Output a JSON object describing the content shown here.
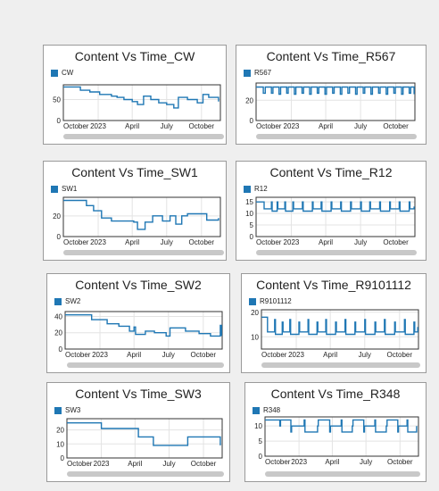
{
  "chart_data": [
    {
      "type": "line",
      "title": "Content Vs Time_CW",
      "series": [
        {
          "name": "CW",
          "color": "#1f77b4",
          "x": [
            "2022-10-01",
            "2022-10-16",
            "2022-11-15",
            "2022-12-10",
            "2023-01-05",
            "2023-02-05",
            "2023-02-20",
            "2023-03-10",
            "2023-04-01",
            "2023-04-15",
            "2023-05-01",
            "2023-05-20",
            "2023-06-10",
            "2023-07-01",
            "2023-07-20",
            "2023-08-01",
            "2023-08-25",
            "2023-09-20",
            "2023-10-05",
            "2023-10-20",
            "2023-11-15"
          ],
          "y": [
            80,
            80,
            72,
            68,
            62,
            58,
            55,
            50,
            45,
            38,
            58,
            50,
            42,
            38,
            30,
            55,
            50,
            42,
            62,
            55,
            45
          ]
        }
      ],
      "yticks": [
        0,
        50
      ],
      "ylim": [
        0,
        85
      ],
      "xlim": [
        "2022-10-01",
        "2023-11-20"
      ],
      "xticks": [
        {
          "label": "October",
          "date": "2022-10-01"
        },
        {
          "label": "2023",
          "date": "2023-01-01"
        },
        {
          "label": "April",
          "date": "2023-04-01"
        },
        {
          "label": "July",
          "date": "2023-07-01"
        },
        {
          "label": "October",
          "date": "2023-10-01"
        }
      ],
      "grid": true
    },
    {
      "type": "line",
      "title": "Content Vs Time_R567",
      "series": [
        {
          "name": "R567",
          "color": "#1f77b4",
          "x": [
            "2022-10-01",
            "2022-10-05",
            "2022-10-20",
            "2022-10-25",
            "2022-11-10",
            "2022-11-14",
            "2022-11-30",
            "2022-12-04",
            "2022-12-20",
            "2022-12-24",
            "2023-01-09",
            "2023-01-13",
            "2023-01-29",
            "2023-02-02",
            "2023-02-18",
            "2023-02-22",
            "2023-03-10",
            "2023-03-14",
            "2023-03-30",
            "2023-04-03",
            "2023-04-19",
            "2023-04-23",
            "2023-05-09",
            "2023-05-13",
            "2023-05-29",
            "2023-06-02",
            "2023-06-18",
            "2023-06-22",
            "2023-07-08",
            "2023-07-12",
            "2023-07-28",
            "2023-08-01",
            "2023-08-17",
            "2023-08-21",
            "2023-09-06",
            "2023-09-10",
            "2023-09-26",
            "2023-09-30",
            "2023-10-16",
            "2023-10-20",
            "2023-11-05",
            "2023-11-09",
            "2023-11-18"
          ],
          "y": [
            33,
            33,
            27,
            33,
            27,
            33,
            26,
            33,
            27,
            33,
            26,
            33,
            27,
            33,
            26,
            33,
            27,
            33,
            26,
            33,
            27,
            33,
            26,
            33,
            27,
            33,
            26,
            33,
            27,
            33,
            26,
            33,
            27,
            33,
            26,
            33,
            27,
            33,
            26,
            33,
            27,
            33,
            26
          ]
        }
      ],
      "yticks": [
        0,
        20
      ],
      "ylim": [
        0,
        37
      ],
      "xlim": [
        "2022-10-01",
        "2023-11-20"
      ],
      "xticks": [
        {
          "label": "October",
          "date": "2022-10-01"
        },
        {
          "label": "2023",
          "date": "2023-01-01"
        },
        {
          "label": "April",
          "date": "2023-04-01"
        },
        {
          "label": "July",
          "date": "2023-07-01"
        },
        {
          "label": "October",
          "date": "2023-10-01"
        }
      ],
      "grid": true
    },
    {
      "type": "line",
      "title": "Content Vs Time_SW1",
      "series": [
        {
          "name": "SW1",
          "color": "#1f77b4",
          "x": [
            "2022-10-01",
            "2022-11-01",
            "2022-12-01",
            "2022-12-20",
            "2023-01-10",
            "2023-02-05",
            "2023-03-10",
            "2023-04-05",
            "2023-04-15",
            "2023-05-05",
            "2023-05-25",
            "2023-06-20",
            "2023-07-10",
            "2023-07-25",
            "2023-08-10",
            "2023-08-25",
            "2023-09-30",
            "2023-10-15",
            "2023-11-15"
          ],
          "y": [
            35,
            35,
            30,
            25,
            18,
            15,
            15,
            14,
            7,
            14,
            20,
            15,
            20,
            12,
            20,
            22,
            22,
            16,
            18
          ]
        }
      ],
      "yticks": [
        0,
        20
      ],
      "ylim": [
        0,
        38
      ],
      "xlim": [
        "2022-10-01",
        "2023-11-20"
      ],
      "xticks": [
        {
          "label": "October",
          "date": "2022-10-01"
        },
        {
          "label": "2023",
          "date": "2023-01-01"
        },
        {
          "label": "April",
          "date": "2023-04-01"
        },
        {
          "label": "July",
          "date": "2023-07-01"
        },
        {
          "label": "October",
          "date": "2023-10-01"
        }
      ],
      "grid": true
    },
    {
      "type": "line",
      "title": "Content Vs Time_R12",
      "series": [
        {
          "name": "R12",
          "color": "#1f77b4",
          "x": [
            "2022-10-01",
            "2022-10-20",
            "2022-10-22",
            "2022-11-10",
            "2022-11-12",
            "2022-11-25",
            "2022-11-27",
            "2022-12-15",
            "2022-12-17",
            "2023-01-05",
            "2023-01-07",
            "2023-01-30",
            "2023-02-01",
            "2023-02-25",
            "2023-02-27",
            "2023-03-20",
            "2023-03-22",
            "2023-04-15",
            "2023-04-17",
            "2023-05-10",
            "2023-05-12",
            "2023-06-05",
            "2023-06-07",
            "2023-07-01",
            "2023-07-03",
            "2023-07-25",
            "2023-07-27",
            "2023-08-20",
            "2023-08-22",
            "2023-09-15",
            "2023-09-17",
            "2023-10-10",
            "2023-10-12",
            "2023-11-05",
            "2023-11-07",
            "2023-11-18"
          ],
          "y": [
            15,
            15,
            12,
            15,
            11,
            15,
            12,
            15,
            11,
            15,
            12,
            15,
            11,
            15,
            12,
            15,
            11,
            15,
            12,
            15,
            11,
            15,
            12,
            15,
            11,
            15,
            12,
            15,
            11,
            15,
            12,
            15,
            11,
            15,
            12,
            13
          ]
        }
      ],
      "yticks": [
        0,
        5,
        10,
        15
      ],
      "ylim": [
        0,
        17
      ],
      "xlim": [
        "2022-10-01",
        "2023-11-20"
      ],
      "xticks": [
        {
          "label": "October",
          "date": "2022-10-01"
        },
        {
          "label": "2023",
          "date": "2023-01-01"
        },
        {
          "label": "April",
          "date": "2023-04-01"
        },
        {
          "label": "July",
          "date": "2023-07-01"
        },
        {
          "label": "October",
          "date": "2023-10-01"
        }
      ],
      "grid": true
    },
    {
      "type": "line",
      "title": "Content Vs Time_SW2",
      "series": [
        {
          "name": "SW2",
          "color": "#1f77b4",
          "x": [
            "2022-10-01",
            "2022-11-01",
            "2022-12-10",
            "2023-01-20",
            "2023-02-20",
            "2023-03-20",
            "2023-04-01",
            "2023-04-05",
            "2023-05-01",
            "2023-05-25",
            "2023-06-25",
            "2023-07-05",
            "2023-08-15",
            "2023-09-20",
            "2023-10-20",
            "2023-11-15",
            "2023-11-18"
          ],
          "y": [
            42,
            42,
            36,
            31,
            28,
            22,
            27,
            18,
            22,
            20,
            16,
            26,
            22,
            19,
            16,
            29,
            16
          ]
        }
      ],
      "yticks": [
        0,
        20,
        40
      ],
      "ylim": [
        0,
        46
      ],
      "xlim": [
        "2022-10-01",
        "2023-11-20"
      ],
      "xticks": [
        {
          "label": "October",
          "date": "2022-10-01"
        },
        {
          "label": "2023",
          "date": "2023-01-01"
        },
        {
          "label": "April",
          "date": "2023-04-01"
        },
        {
          "label": "July",
          "date": "2023-07-01"
        },
        {
          "label": "October",
          "date": "2023-10-01"
        }
      ],
      "grid": true
    },
    {
      "type": "line",
      "title": "Content Vs Time_R9101112",
      "series": [
        {
          "name": "R9101112",
          "color": "#1f77b4",
          "x": [
            "2022-10-01",
            "2022-10-15",
            "2022-10-17",
            "2022-11-05",
            "2022-11-07",
            "2022-11-25",
            "2022-11-27",
            "2022-12-15",
            "2022-12-17",
            "2023-01-08",
            "2023-01-10",
            "2023-02-01",
            "2023-02-03",
            "2023-02-25",
            "2023-02-27",
            "2023-03-20",
            "2023-03-22",
            "2023-04-15",
            "2023-04-17",
            "2023-05-10",
            "2023-05-12",
            "2023-06-05",
            "2023-06-07",
            "2023-07-01",
            "2023-07-03",
            "2023-07-28",
            "2023-07-30",
            "2023-08-22",
            "2023-08-24",
            "2023-09-18",
            "2023-09-20",
            "2023-10-14",
            "2023-10-16",
            "2023-11-08",
            "2023-11-10",
            "2023-11-18"
          ],
          "y": [
            18,
            18,
            12,
            17,
            11,
            16,
            12,
            17,
            11,
            16,
            12,
            17,
            11,
            16,
            12,
            17,
            11,
            16,
            12,
            17,
            11,
            16,
            12,
            17,
            11,
            16,
            12,
            17,
            11,
            16,
            12,
            17,
            11,
            16,
            12,
            14
          ]
        }
      ],
      "yticks": [
        10,
        20
      ],
      "ylim": [
        5,
        21
      ],
      "xlim": [
        "2022-10-01",
        "2023-11-20"
      ],
      "xticks": [
        {
          "label": "October",
          "date": "2022-10-01"
        },
        {
          "label": "2023",
          "date": "2023-01-01"
        },
        {
          "label": "April",
          "date": "2023-04-01"
        },
        {
          "label": "July",
          "date": "2023-07-01"
        },
        {
          "label": "October",
          "date": "2023-10-01"
        }
      ],
      "grid": true
    },
    {
      "type": "line",
      "title": "Content Vs Time_SW3",
      "series": [
        {
          "name": "SW3",
          "color": "#1f77b4",
          "x": [
            "2022-10-01",
            "2022-11-20",
            "2023-01-01",
            "2023-02-01",
            "2023-03-10",
            "2023-04-10",
            "2023-05-20",
            "2023-06-20",
            "2023-07-20",
            "2023-08-20",
            "2023-09-20",
            "2023-10-20",
            "2023-11-15"
          ],
          "y": [
            25,
            25,
            21,
            21,
            21,
            15,
            9,
            9,
            9,
            15,
            15,
            15,
            9
          ]
        }
      ],
      "yticks": [
        0,
        10,
        20
      ],
      "ylim": [
        0,
        28
      ],
      "xlim": [
        "2022-10-01",
        "2023-11-20"
      ],
      "xticks": [
        {
          "label": "October",
          "date": "2022-10-01"
        },
        {
          "label": "2023",
          "date": "2023-01-01"
        },
        {
          "label": "April",
          "date": "2023-04-01"
        },
        {
          "label": "July",
          "date": "2023-07-01"
        },
        {
          "label": "October",
          "date": "2023-10-01"
        }
      ],
      "grid": true
    },
    {
      "type": "line",
      "title": "Content Vs Time_R348",
      "series": [
        {
          "name": "R348",
          "color": "#1f77b4",
          "x": [
            "2022-10-01",
            "2022-10-20",
            "2022-11-10",
            "2022-11-12",
            "2022-12-10",
            "2022-12-12",
            "2023-01-15",
            "2023-01-17",
            "2023-02-20",
            "2023-02-22",
            "2023-03-25",
            "2023-03-27",
            "2023-04-25",
            "2023-04-27",
            "2023-05-25",
            "2023-05-27",
            "2023-06-25",
            "2023-06-27",
            "2023-07-25",
            "2023-07-27",
            "2023-08-25",
            "2023-08-27",
            "2023-09-25",
            "2023-09-27",
            "2023-10-20",
            "2023-10-22",
            "2023-11-15"
          ],
          "y": [
            12,
            12,
            10,
            12,
            8,
            10,
            12,
            8,
            10,
            12,
            8,
            10,
            12,
            8,
            10,
            12,
            8,
            10,
            12,
            8,
            10,
            12,
            8,
            10,
            12,
            8,
            10
          ]
        }
      ],
      "yticks": [
        0,
        5,
        10
      ],
      "ylim": [
        0,
        13
      ],
      "xlim": [
        "2022-10-01",
        "2023-11-20"
      ],
      "xticks": [
        {
          "label": "October",
          "date": "2022-10-01"
        },
        {
          "label": "2023",
          "date": "2023-01-01"
        },
        {
          "label": "April",
          "date": "2023-04-01"
        },
        {
          "label": "July",
          "date": "2023-07-01"
        },
        {
          "label": "October",
          "date": "2023-10-01"
        }
      ],
      "grid": true
    }
  ]
}
